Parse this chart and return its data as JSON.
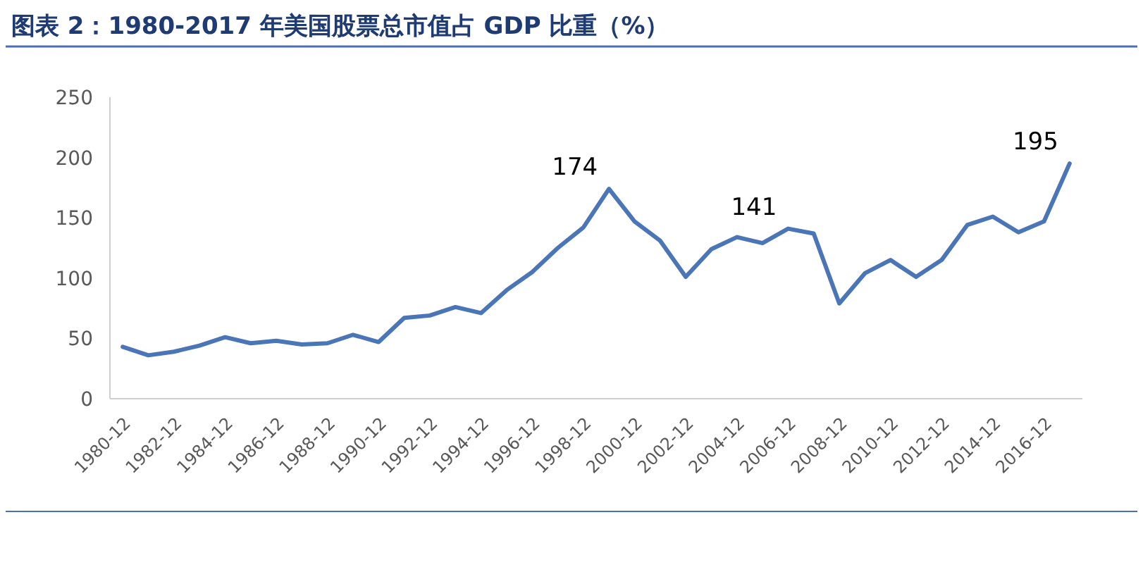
{
  "chart_data": {
    "type": "line",
    "title": "图表 2：1980-2017 年美国股票总市值占 GDP 比重（%）",
    "categories": [
      "1980-12",
      null,
      "1982-12",
      null,
      "1984-12",
      null,
      "1986-12",
      null,
      "1988-12",
      null,
      "1990-12",
      null,
      "1992-12",
      null,
      "1994-12",
      null,
      "1996-12",
      null,
      "1998-12",
      null,
      "2000-12",
      null,
      "2002-12",
      null,
      "2004-12",
      null,
      "2006-12",
      null,
      "2008-12",
      null,
      "2010-12",
      null,
      "2012-12",
      null,
      "2014-12",
      null,
      "2016-12",
      null
    ],
    "series": [
      {
        "color": "#4a76b8",
        "values": [
          43,
          36,
          39,
          44,
          51,
          46,
          48,
          45,
          46,
          53,
          47,
          67,
          69,
          76,
          71,
          90,
          105,
          125,
          142,
          174,
          147,
          131,
          101,
          124,
          134,
          129,
          141,
          137,
          79,
          104,
          115,
          101,
          115,
          144,
          151,
          138,
          147,
          195
        ],
        "value_labels": [
          null,
          null,
          null,
          null,
          null,
          null,
          null,
          null,
          null,
          null,
          null,
          null,
          null,
          null,
          null,
          null,
          null,
          null,
          null,
          "174",
          null,
          null,
          null,
          null,
          null,
          null,
          "141",
          null,
          null,
          null,
          null,
          null,
          null,
          null,
          null,
          null,
          null,
          "195"
        ]
      }
    ],
    "ylim": [
      0,
      250
    ],
    "yticks": [
      0,
      50,
      100,
      150,
      200,
      250
    ],
    "grid": false,
    "marker": "none",
    "line_style": "solid"
  }
}
